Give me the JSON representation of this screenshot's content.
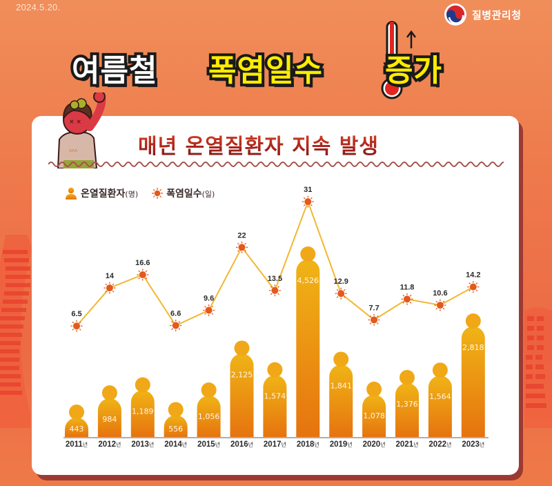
{
  "header": {
    "date": "2024.5.20.",
    "agency": "질병관리청",
    "title_part1": "여름철",
    "title_part2": "폭염일수",
    "title_part3": "증가"
  },
  "card": {
    "subtitle": "매년 온열질환자 지속 발생"
  },
  "legend": [
    {
      "icon": "person-icon",
      "label": "온열질환자",
      "unit": "(명)",
      "color": "#f0900a"
    },
    {
      "icon": "sun-icon",
      "label": "폭염일수",
      "unit": "(일)",
      "color": "#e25a1c"
    }
  ],
  "colors": {
    "background": "#ee7a4c",
    "card": "#ffffff",
    "card_shadow": "#9b3a33",
    "bar_top": "#f0b416",
    "bar_bottom": "#e6730f",
    "line": "#f2b731",
    "marker": "#e25a1c",
    "title_yellow": "#ffec00",
    "subtitle_red": "#b22a1e"
  },
  "chart_data": {
    "type": "bar+line",
    "title": "매년 온열질환자 지속 발생",
    "categories": [
      "2011년",
      "2012년",
      "2013년",
      "2014년",
      "2015년",
      "2016년",
      "2017년",
      "2018년",
      "2019년",
      "2020년",
      "2021년",
      "2022년",
      "2023년"
    ],
    "x": [
      2011,
      2012,
      2013,
      2014,
      2015,
      2016,
      2017,
      2018,
      2019,
      2020,
      2021,
      2022,
      2023
    ],
    "series": [
      {
        "name": "온열질환자(명)",
        "type": "bar",
        "values": [
          443,
          984,
          1189,
          556,
          1056,
          2125,
          1574,
          4526,
          1841,
          1078,
          1376,
          1564,
          2818
        ],
        "labels": [
          "443",
          "984",
          "1,189",
          "556",
          "1,056",
          "2,125",
          "1,574",
          "4,526",
          "1,841",
          "1,078",
          "1,376",
          "1,564",
          "2,818"
        ]
      },
      {
        "name": "폭염일수(일)",
        "type": "line",
        "values": [
          6.5,
          14,
          16.6,
          6.6,
          9.6,
          22,
          13.5,
          31,
          12.9,
          7.7,
          11.8,
          10.6,
          14.2
        ],
        "labels": [
          "6.5",
          "14",
          "16.6",
          "6.6",
          "9.6",
          "22",
          "13.5",
          "31",
          "12.9",
          "7.7",
          "11.8",
          "10.6",
          "14.2"
        ]
      }
    ],
    "xlabel": "",
    "ylabel": "",
    "grid": false,
    "legend_position": "top-left",
    "year_suffix": "년"
  }
}
